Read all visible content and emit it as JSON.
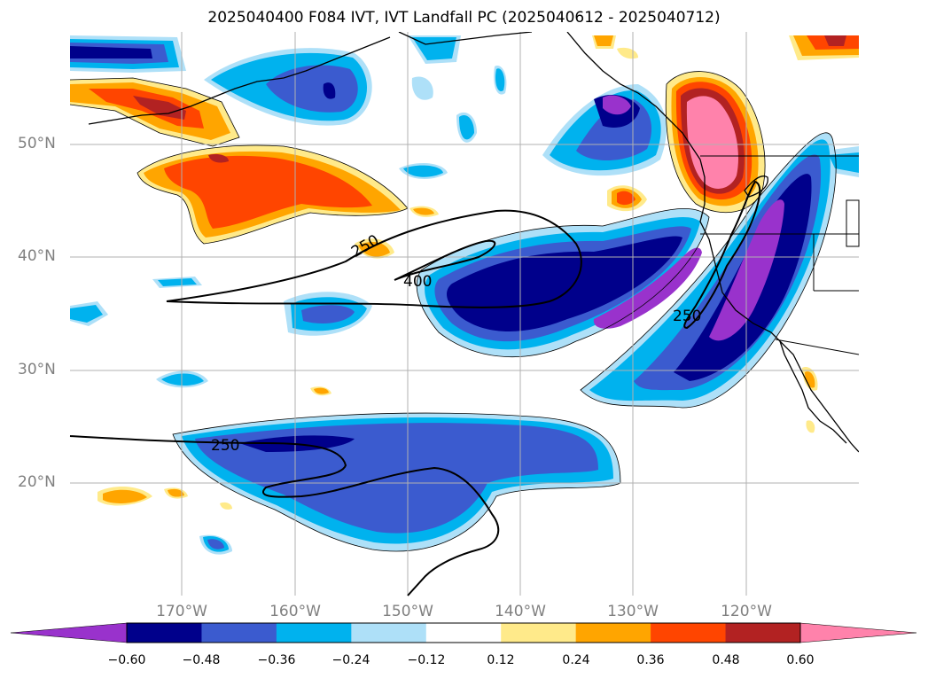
{
  "title": "2025040400 F084 IVT, IVT Landfall PC (2025040612 - 2025040712)",
  "lat_labels": [
    "50°N",
    "40°N",
    "30°N",
    "20°N"
  ],
  "lon_labels": [
    "170°W",
    "160°W",
    "150°W",
    "140°W",
    "130°W",
    "120°W"
  ],
  "contour_labels": [
    "250",
    "400",
    "250",
    "250"
  ],
  "colorbar": {
    "colors": [
      "#9932cc",
      "#00008b",
      "#3b5bcf",
      "#00b2ee",
      "#aee0f8",
      "#ffffff",
      "#ffea8a",
      "#ffa500",
      "#ff4500",
      "#b22222",
      "#ff82ab"
    ],
    "tick_labels": [
      "−0.60",
      "−0.48",
      "−0.36",
      "−0.24",
      "−0.12",
      "0.12",
      "0.24",
      "0.36",
      "0.48",
      "0.60"
    ]
  }
}
